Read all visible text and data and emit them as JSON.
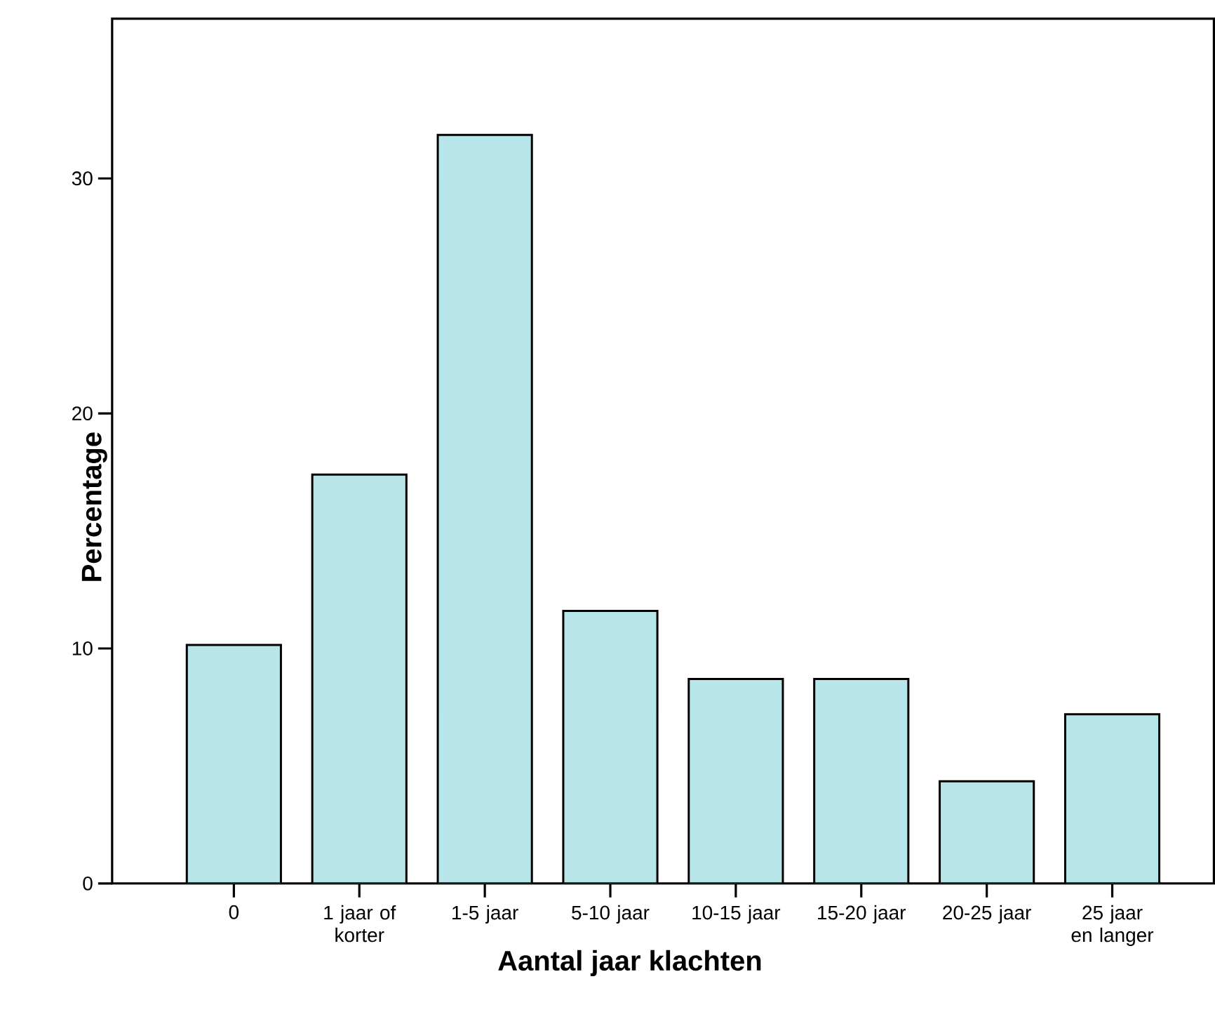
{
  "chart_data": {
    "type": "bar",
    "xlabel": "Aantal jaar klachten",
    "ylabel": "Percentage",
    "categories": [
      "0",
      "1 jaar of korter",
      "1-5 jaar",
      "5-10 jaar",
      "10-15 jaar",
      "15-20 jaar",
      "20-25 jaar",
      "25 jaar en langer"
    ],
    "values": [
      10.15,
      17.4,
      31.85,
      11.6,
      8.7,
      8.7,
      4.35,
      7.2
    ],
    "color": "#b8e6e8",
    "ylim": [
      0,
      36.8
    ],
    "yticks": [
      0,
      10,
      20,
      30
    ],
    "grid": false
  }
}
